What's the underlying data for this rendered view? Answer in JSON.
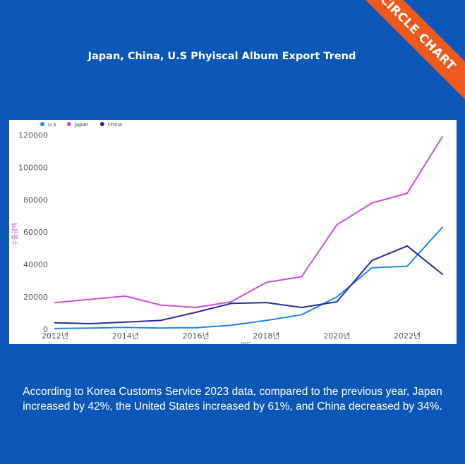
{
  "brand": {
    "ribbon_label": "CIRCLE CHART",
    "ribbon_color": "#ee5a1e",
    "background": "#0a57b8"
  },
  "header": {
    "title": "Japan, China, U.S Phyiscal Album Export Trend"
  },
  "caption": {
    "text": "According to Korea Customs Service 2023 data, compared to the previous year, Japan increased by 42%, the United States increased by 61%, and China decreased by 34%."
  },
  "chart_data": {
    "type": "line",
    "title": "Japan, China, U.S Phyiscal Album Export Trend",
    "xlabel": "연도",
    "ylabel": "수출금액",
    "x": [
      2012,
      2013,
      2014,
      2015,
      2016,
      2017,
      2018,
      2019,
      2020,
      2021,
      2022,
      2023
    ],
    "xticks": [
      2012,
      2014,
      2016,
      2018,
      2020,
      2022
    ],
    "xtick_labels": [
      "2012년",
      "2014년",
      "2016년",
      "2018년",
      "2020년",
      "2022년"
    ],
    "yticks": [
      0,
      20000,
      40000,
      60000,
      80000,
      100000,
      120000
    ],
    "ylim": [
      0,
      125000
    ],
    "grid": false,
    "legend_position": "top-left",
    "series": [
      {
        "name": "U.S",
        "color": "#1e88e5",
        "values": [
          500,
          800,
          1200,
          800,
          1000,
          2500,
          5500,
          9000,
          20000,
          38000,
          39000,
          63000
        ]
      },
      {
        "name": "Japan",
        "color": "#c94fd8",
        "values": [
          16500,
          18500,
          20500,
          15000,
          13500,
          17000,
          29000,
          32500,
          64500,
          78000,
          84000,
          119000
        ]
      },
      {
        "name": "China",
        "color": "#2a2a9a",
        "values": [
          4000,
          3500,
          4500,
          5500,
          10500,
          16000,
          16500,
          13500,
          17000,
          42500,
          51500,
          34000
        ]
      }
    ]
  }
}
